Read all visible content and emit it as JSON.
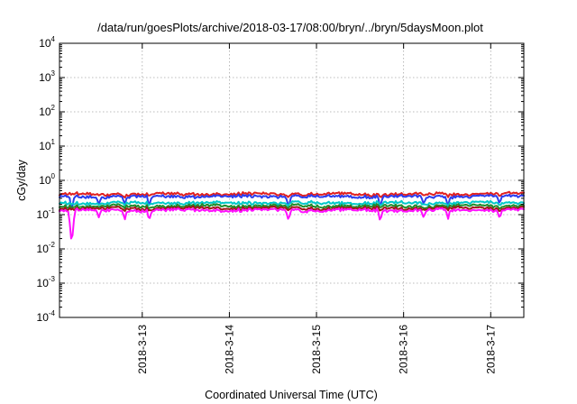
{
  "chart_data": {
    "type": "line",
    "title": "/data/run/goesPlots/archive/2018-03-17/08:00/bryn/../bryn/5daysMoon.plot",
    "xlabel": "Coordinated Universal Time (UTC)",
    "ylabel": "cGy/day",
    "yscale": "log",
    "ylim": [
      0.0001,
      10000
    ],
    "xlim": [
      12.05,
      17.38
    ],
    "grid": true,
    "y_ticks": [
      {
        "base": "10",
        "exp": "4",
        "value": 10000
      },
      {
        "base": "10",
        "exp": "3",
        "value": 1000
      },
      {
        "base": "10",
        "exp": "2",
        "value": 100
      },
      {
        "base": "10",
        "exp": "1",
        "value": 10
      },
      {
        "base": "10",
        "exp": "0",
        "value": 1
      },
      {
        "base": "10",
        "exp": "-1",
        "value": 0.1
      },
      {
        "base": "10",
        "exp": "-2",
        "value": 0.01
      },
      {
        "base": "10",
        "exp": "-3",
        "value": 0.001
      },
      {
        "base": "10",
        "exp": "-4",
        "value": 0.0001
      }
    ],
    "x_ticks": [
      {
        "label": "2018-3-13",
        "value": 13
      },
      {
        "label": "2018-3-14",
        "value": 14
      },
      {
        "label": "2018-3-15",
        "value": 15
      },
      {
        "label": "2018-3-16",
        "value": 16
      },
      {
        "label": "2018-3-17",
        "value": 17
      }
    ],
    "dips": [
      {
        "x": 12.19,
        "depth": 0.25
      },
      {
        "x": 12.5,
        "depth": 0.55
      },
      {
        "x": 12.8,
        "depth": 0.6
      },
      {
        "x": 13.08,
        "depth": 0.5
      },
      {
        "x": 14.68,
        "depth": 0.5
      },
      {
        "x": 15.73,
        "depth": 0.5
      },
      {
        "x": 16.23,
        "depth": 0.55
      },
      {
        "x": 16.51,
        "depth": 0.55
      },
      {
        "x": 17.1,
        "depth": 0.6
      }
    ],
    "dip_series": [
      "magenta",
      "blue"
    ],
    "deep_dip": {
      "x": 12.19,
      "series": "magenta",
      "value": 0.016
    },
    "series": [
      {
        "color": "#e02020",
        "level": 0.4
      },
      {
        "color": "#2a3cf0",
        "level": 0.34
      },
      {
        "color": "#00c8c8",
        "level": 0.22
      },
      {
        "color": "#1e8c2a",
        "level": 0.18
      },
      {
        "color": "#a01818",
        "level": 0.155
      },
      {
        "color": "#ff10ff",
        "level": 0.135
      }
    ]
  }
}
